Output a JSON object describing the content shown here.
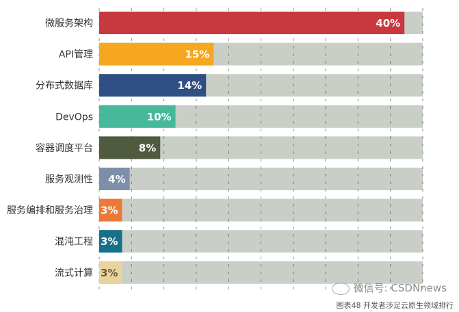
{
  "chart_data": {
    "type": "bar",
    "orientation": "horizontal",
    "categories": [
      "微服务架构",
      "API管理",
      "分布式数据库",
      "DevOps",
      "容器调度平台",
      "服务观测性",
      "服务编排和服务治理",
      "混沌工程",
      "流式计算"
    ],
    "values": [
      40,
      15,
      14,
      10,
      8,
      4,
      3,
      3,
      3
    ],
    "labels": [
      "40%",
      "15%",
      "14%",
      "10%",
      "8%",
      "4%",
      "3%",
      "3%",
      "3%"
    ],
    "colors": [
      "#c8383f",
      "#f5a81f",
      "#2f4f85",
      "#47b99b",
      "#4f5a3f",
      "#7d8fa8",
      "#eb7a36",
      "#17708a",
      "#e9d49f"
    ],
    "label_colors": [
      "#ffffff",
      "#ffffff",
      "#ffffff",
      "#ffffff",
      "#ffffff",
      "#ffffff",
      "#ffffff",
      "#ffffff",
      "#6b5a3a"
    ],
    "track_color": "#c9cfc7",
    "xlim": [
      0,
      42.4
    ],
    "grid": true,
    "title": "",
    "xlabel": "",
    "ylabel": ""
  },
  "caption": "图表48 开发者涉足云原生领域排行",
  "watermark": "微信号: CSDNnews"
}
